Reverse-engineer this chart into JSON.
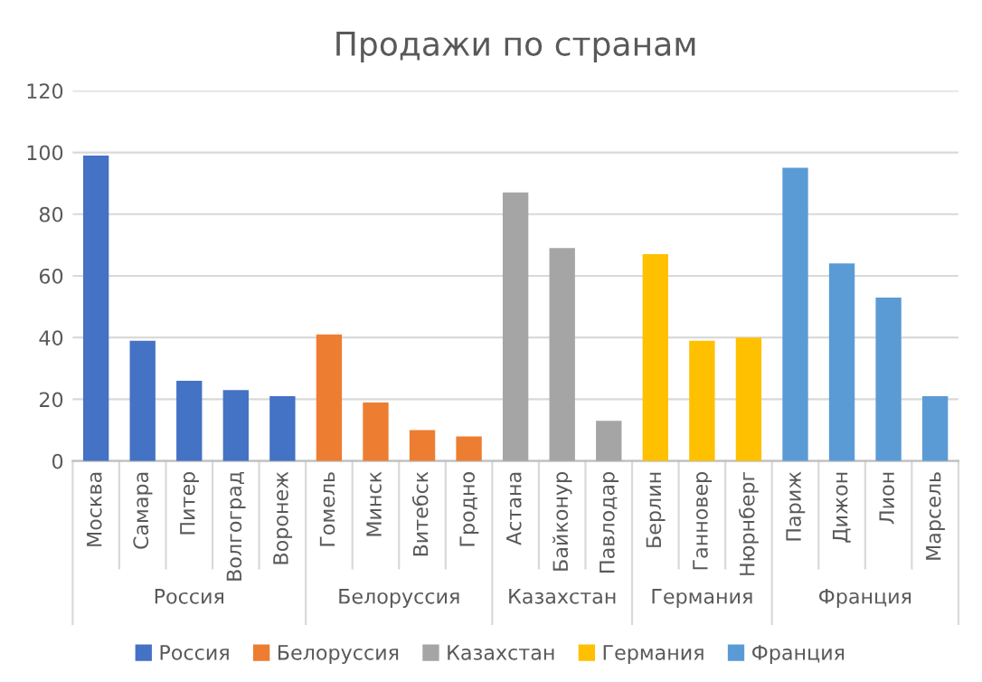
{
  "chart_data": {
    "type": "bar",
    "title": "Продажи по странам",
    "categories": [
      "Москва",
      "Самара",
      "Питер",
      "Волгоград",
      "Воронеж",
      "Гомель",
      "Минск",
      "Витебск",
      "Гродно",
      "Астана",
      "Байконур",
      "Павлодар",
      "Берлин",
      "Ганновер",
      "Нюрнберг",
      "Париж",
      "Дижон",
      "Лион",
      "Марсель"
    ],
    "series": [
      {
        "name": "Россия",
        "color": "#4472c4",
        "values": [
          99,
          39,
          26,
          23,
          21,
          null,
          null,
          null,
          null,
          null,
          null,
          null,
          null,
          null,
          null,
          null,
          null,
          null,
          null
        ]
      },
      {
        "name": "Белоруссия",
        "color": "#ed7d31",
        "values": [
          null,
          null,
          null,
          null,
          null,
          41,
          19,
          10,
          8,
          null,
          null,
          null,
          null,
          null,
          null,
          null,
          null,
          null,
          null
        ]
      },
      {
        "name": "Казахстан",
        "color": "#a5a5a5",
        "values": [
          null,
          null,
          null,
          null,
          null,
          null,
          null,
          null,
          null,
          87,
          69,
          13,
          null,
          null,
          null,
          null,
          null,
          null,
          null
        ]
      },
      {
        "name": "Германия",
        "color": "#ffc000",
        "values": [
          null,
          null,
          null,
          null,
          null,
          null,
          null,
          null,
          null,
          null,
          null,
          null,
          67,
          39,
          40,
          null,
          null,
          null,
          null
        ]
      },
      {
        "name": "Франция",
        "color": "#5b9bd5",
        "values": [
          null,
          null,
          null,
          null,
          null,
          null,
          null,
          null,
          null,
          null,
          null,
          null,
          null,
          null,
          null,
          95,
          64,
          53,
          21
        ]
      }
    ],
    "ylim": [
      0,
      120
    ],
    "yticks": [
      0,
      20,
      40,
      60,
      80,
      100,
      120
    ],
    "grid": "y",
    "legend": "bottom"
  }
}
